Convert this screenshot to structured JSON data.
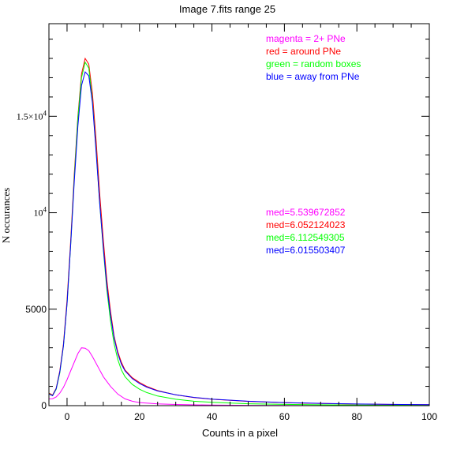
{
  "chart_data": {
    "type": "line",
    "title": "Image 7.fits   range 25",
    "xlabel": "Counts in a pixel",
    "ylabel": "N occurances",
    "xlim": [
      -5,
      100
    ],
    "ylim": [
      0,
      19800
    ],
    "grid": false,
    "legend_position": "top-right",
    "x_ticks": [
      {
        "value": 0,
        "label": "0"
      },
      {
        "value": 20,
        "label": "20"
      },
      {
        "value": 40,
        "label": "40"
      },
      {
        "value": 60,
        "label": "60"
      },
      {
        "value": 80,
        "label": "80"
      },
      {
        "value": 100,
        "label": "100"
      }
    ],
    "y_ticks": [
      {
        "value": 0,
        "label": "0"
      },
      {
        "value": 5000,
        "label": "5000"
      },
      {
        "value": 10000,
        "label": "10",
        "exp": "4"
      },
      {
        "value": 15000,
        "label": "1.5×10",
        "exp": "4"
      }
    ],
    "legend_lines": [
      {
        "text": "magenta = 2+ PNe",
        "color": "#ff00ff"
      },
      {
        "text": "red = around PNe",
        "color": "#ff0000"
      },
      {
        "text": "green = random boxes",
        "color": "#00ff00"
      },
      {
        "text": "blue = away from PNe",
        "color": "#0000ff"
      }
    ],
    "median_lines": [
      {
        "text": "med=5.539672852",
        "color": "#ff00ff"
      },
      {
        "text": "med=6.052124023",
        "color": "#ff0000"
      },
      {
        "text": "med=6.112549305",
        "color": "#00ff00"
      },
      {
        "text": "med=6.015503407",
        "color": "#0000ff"
      }
    ],
    "series": [
      {
        "color": "#ff00ff",
        "x": [
          -5,
          -4,
          -3,
          -2,
          -1,
          0,
          1,
          2,
          3,
          4,
          5,
          6,
          7,
          8,
          9,
          10,
          12,
          14,
          16,
          18,
          20,
          25,
          30,
          40,
          50,
          60,
          80,
          100
        ],
        "y": [
          350,
          360,
          450,
          650,
          950,
          1350,
          1800,
          2250,
          2700,
          3000,
          2980,
          2850,
          2550,
          2200,
          1850,
          1500,
          1000,
          600,
          350,
          230,
          160,
          90,
          60,
          30,
          15,
          8,
          3,
          0
        ]
      },
      {
        "color": "#ff0000",
        "x": [
          -5,
          -4,
          -3,
          -2,
          -1,
          0,
          1,
          2,
          3,
          4,
          5,
          6,
          7,
          8,
          9,
          10,
          11,
          12,
          13,
          14,
          15,
          16,
          18,
          20,
          22,
          25,
          30,
          35,
          40,
          50,
          60,
          70,
          80,
          90,
          100
        ],
        "y": [
          650,
          550,
          900,
          1800,
          3200,
          5500,
          8500,
          12000,
          15000,
          17200,
          18000,
          17700,
          16200,
          13800,
          11000,
          8600,
          6500,
          4900,
          3600,
          2800,
          2250,
          1850,
          1450,
          1200,
          1000,
          780,
          560,
          420,
          330,
          220,
          150,
          110,
          80,
          60,
          50
        ]
      },
      {
        "color": "#00ff00",
        "x": [
          -5,
          -4,
          -3,
          -2,
          -1,
          0,
          1,
          2,
          3,
          4,
          5,
          6,
          7,
          8,
          9,
          10,
          11,
          12,
          13,
          14,
          15,
          16,
          18,
          20,
          22,
          25,
          30,
          35,
          40,
          50,
          60,
          70,
          80,
          90,
          100
        ],
        "y": [
          620,
          520,
          850,
          1700,
          3100,
          5300,
          8300,
          11800,
          14900,
          17000,
          17800,
          17500,
          15800,
          13300,
          10500,
          8100,
          6000,
          4400,
          3200,
          2400,
          1850,
          1500,
          1100,
          850,
          680,
          500,
          330,
          230,
          170,
          100,
          65,
          45,
          30,
          22,
          18
        ]
      },
      {
        "color": "#0000ff",
        "x": [
          -5,
          -4,
          -3,
          -2,
          -1,
          0,
          1,
          2,
          3,
          4,
          5,
          6,
          7,
          8,
          9,
          10,
          11,
          12,
          13,
          14,
          15,
          16,
          18,
          20,
          22,
          25,
          30,
          35,
          40,
          50,
          60,
          70,
          80,
          90,
          100
        ],
        "y": [
          600,
          520,
          880,
          1750,
          3100,
          5300,
          8300,
          11600,
          14500,
          16600,
          17300,
          17100,
          15700,
          13200,
          10500,
          8200,
          6200,
          4700,
          3500,
          2700,
          2150,
          1800,
          1400,
          1150,
          960,
          760,
          560,
          430,
          340,
          230,
          160,
          120,
          85,
          65,
          55
        ]
      }
    ]
  }
}
